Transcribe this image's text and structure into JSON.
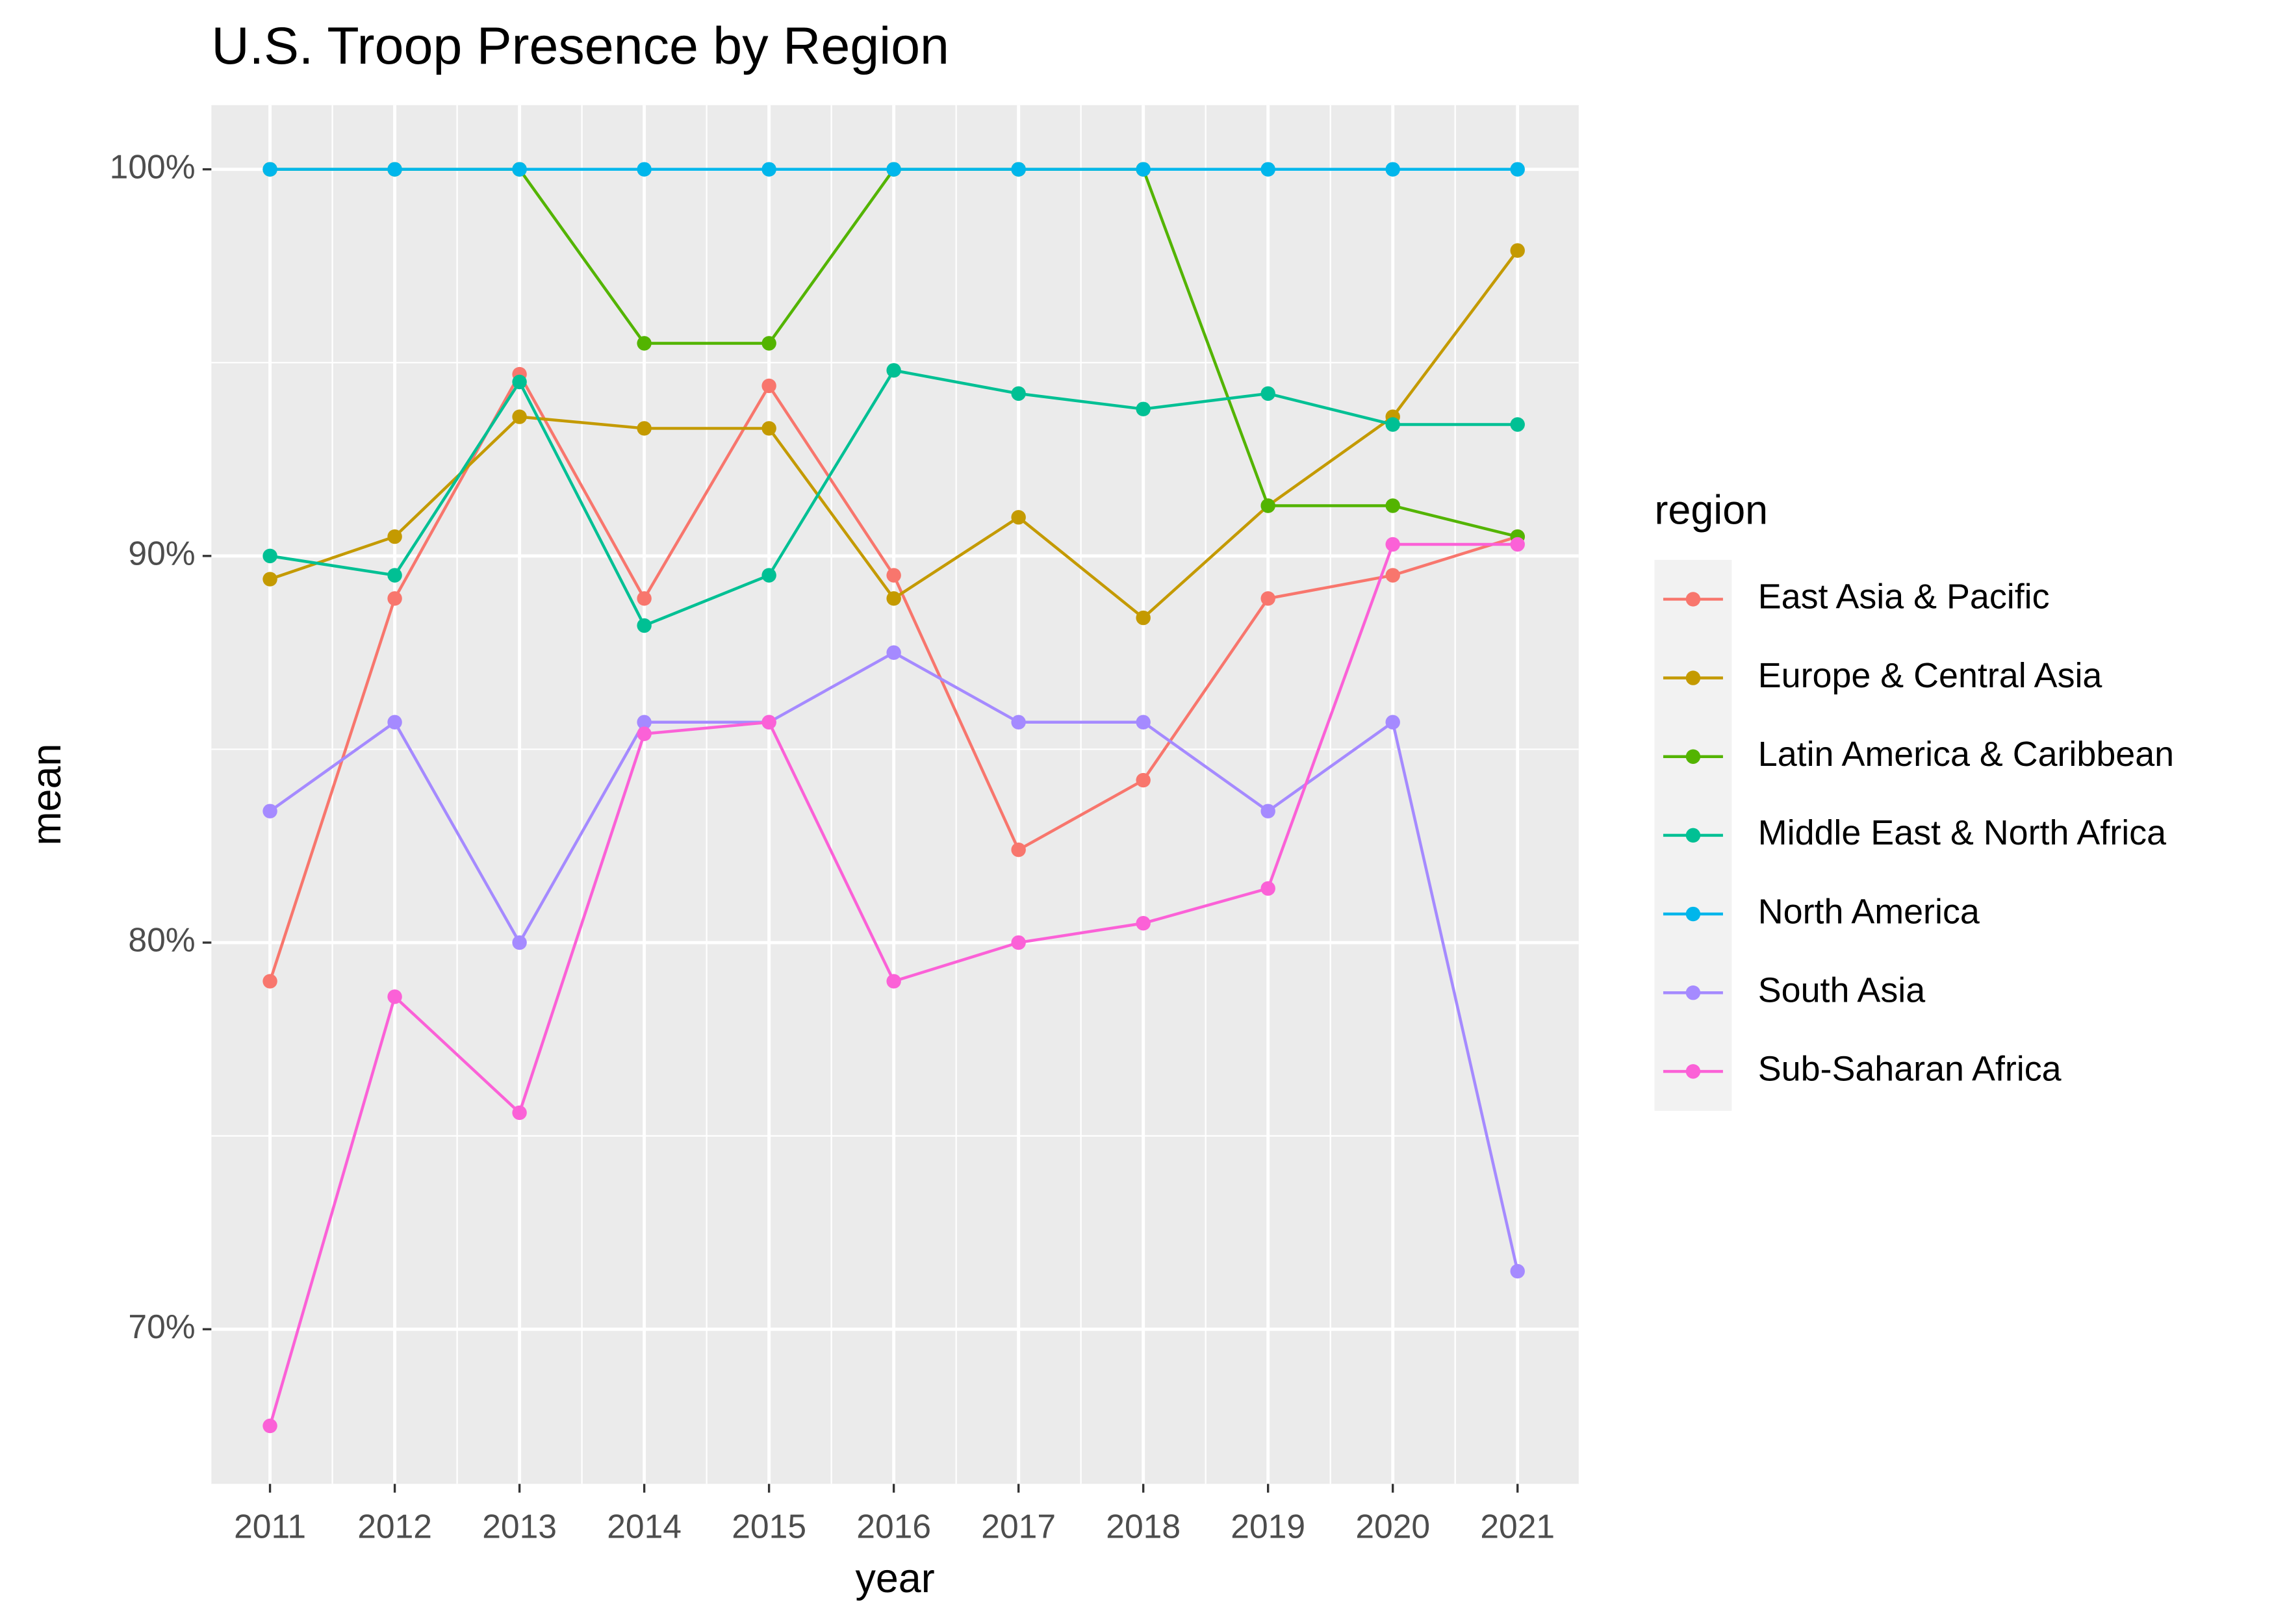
{
  "chart_data": {
    "type": "line",
    "title": "U.S. Troop Presence by Region",
    "x_label": "year",
    "y_label": "mean",
    "legend_title": "region",
    "legend": "right",
    "grid": true,
    "x": [
      2011,
      2012,
      2013,
      2014,
      2015,
      2016,
      2017,
      2018,
      2019,
      2020,
      2021
    ],
    "xlim": [
      2010.53,
      2021.49
    ],
    "xticks": [
      2011,
      2012,
      2013,
      2014,
      2015,
      2016,
      2017,
      2018,
      2019,
      2020,
      2021
    ],
    "ylim": [
      66.0,
      101.66
    ],
    "yticks": [
      {
        "value": 70,
        "label": "70%"
      },
      {
        "value": 80,
        "label": "80%"
      },
      {
        "value": 90,
        "label": "90%"
      },
      {
        "value": 100,
        "label": "100%"
      }
    ],
    "series": [
      {
        "name": "East Asia & Pacific",
        "color": "#F8766D",
        "values": [
          79.0,
          88.9,
          94.7,
          88.9,
          94.4,
          89.5,
          82.4,
          84.2,
          88.9,
          89.5,
          90.5
        ]
      },
      {
        "name": "Europe & Central Asia",
        "color": "#C49A00",
        "values": [
          89.4,
          90.5,
          93.6,
          93.3,
          93.3,
          88.9,
          91.0,
          88.4,
          91.3,
          93.6,
          97.9
        ]
      },
      {
        "name": "Latin America & Caribbean",
        "color": "#53B400",
        "values": [
          100,
          100,
          100,
          95.5,
          95.5,
          100,
          100,
          100,
          91.3,
          91.3,
          90.5
        ]
      },
      {
        "name": "Middle East & North Africa",
        "color": "#00C094",
        "values": [
          90.0,
          89.5,
          94.5,
          88.2,
          89.5,
          94.8,
          94.2,
          93.8,
          94.2,
          93.4,
          93.4
        ]
      },
      {
        "name": "North America",
        "color": "#00B6EB",
        "values": [
          100,
          100,
          100,
          100,
          100,
          100,
          100,
          100,
          100,
          100,
          100
        ]
      },
      {
        "name": "South Asia",
        "color": "#A58AFF",
        "values": [
          83.4,
          85.7,
          80.0,
          85.7,
          85.7,
          87.5,
          85.7,
          85.7,
          83.4,
          85.7,
          71.5
        ]
      },
      {
        "name": "Sub-Saharan Africa",
        "color": "#FB61D7",
        "values": [
          67.5,
          78.6,
          75.6,
          85.4,
          85.7,
          79.0,
          80.0,
          80.5,
          81.4,
          90.3,
          90.3
        ]
      }
    ]
  }
}
